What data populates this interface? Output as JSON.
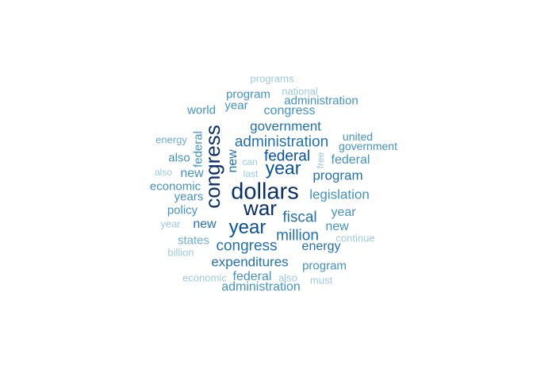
{
  "palette": {
    "darkest": "#08306b",
    "dark": "#08519c",
    "mid_dark": "#2171b5",
    "mid": "#4292c6",
    "mid_light": "#6baed6",
    "light": "#9ecae1"
  },
  "words": [
    {
      "text": "programs",
      "tier": "light",
      "rotated": false
    },
    {
      "text": "national",
      "tier": "light",
      "rotated": false
    },
    {
      "text": "program",
      "tier": "mid",
      "rotated": false
    },
    {
      "text": "administration",
      "tier": "mid",
      "rotated": false
    },
    {
      "text": "world",
      "tier": "mid",
      "rotated": false
    },
    {
      "text": "year",
      "tier": "mid",
      "rotated": false
    },
    {
      "text": "congress",
      "tier": "mid",
      "rotated": false
    },
    {
      "text": "government",
      "tier": "mid_dark",
      "rotated": false
    },
    {
      "text": "energy",
      "tier": "mid_light",
      "rotated": false
    },
    {
      "text": "federal",
      "tier": "mid",
      "rotated": true
    },
    {
      "text": "congress",
      "tier": "darkest",
      "rotated": true
    },
    {
      "text": "united",
      "tier": "mid",
      "rotated": false
    },
    {
      "text": "government",
      "tier": "mid",
      "rotated": false
    },
    {
      "text": "administration",
      "tier": "mid_dark",
      "rotated": false
    },
    {
      "text": "also",
      "tier": "mid",
      "rotated": false
    },
    {
      "text": "new",
      "tier": "mid_dark",
      "rotated": true
    },
    {
      "text": "federal",
      "tier": "dark",
      "rotated": false
    },
    {
      "text": "can",
      "tier": "light",
      "rotated": false
    },
    {
      "text": "free",
      "tier": "light",
      "rotated": true
    },
    {
      "text": "federal",
      "tier": "mid",
      "rotated": false
    },
    {
      "text": "year",
      "tier": "dark",
      "rotated": false
    },
    {
      "text": "also",
      "tier": "light",
      "rotated": false
    },
    {
      "text": "new",
      "tier": "mid",
      "rotated": false
    },
    {
      "text": "last",
      "tier": "light",
      "rotated": false
    },
    {
      "text": "program",
      "tier": "mid_dark",
      "rotated": false
    },
    {
      "text": "economic",
      "tier": "mid",
      "rotated": false
    },
    {
      "text": "dollars",
      "tier": "darkest",
      "rotated": false
    },
    {
      "text": "years",
      "tier": "mid",
      "rotated": false
    },
    {
      "text": "legislation",
      "tier": "mid",
      "rotated": false
    },
    {
      "text": "war",
      "tier": "darkest",
      "rotated": false
    },
    {
      "text": "policy",
      "tier": "mid",
      "rotated": false
    },
    {
      "text": "year",
      "tier": "mid",
      "rotated": false
    },
    {
      "text": "fiscal",
      "tier": "mid_dark",
      "rotated": false
    },
    {
      "text": "year",
      "tier": "light",
      "rotated": false
    },
    {
      "text": "new",
      "tier": "mid_dark",
      "rotated": false
    },
    {
      "text": "year",
      "tier": "dark",
      "rotated": false
    },
    {
      "text": "new",
      "tier": "mid",
      "rotated": false
    },
    {
      "text": "million",
      "tier": "mid_dark",
      "rotated": false
    },
    {
      "text": "continue",
      "tier": "light",
      "rotated": false
    },
    {
      "text": "states",
      "tier": "mid_light",
      "rotated": false
    },
    {
      "text": "congress",
      "tier": "mid_dark",
      "rotated": false
    },
    {
      "text": "energy",
      "tier": "mid_dark",
      "rotated": false
    },
    {
      "text": "billion",
      "tier": "light",
      "rotated": false
    },
    {
      "text": "expenditures",
      "tier": "mid_dark",
      "rotated": false
    },
    {
      "text": "program",
      "tier": "mid",
      "rotated": false
    },
    {
      "text": "economic",
      "tier": "light",
      "rotated": false
    },
    {
      "text": "federal",
      "tier": "mid",
      "rotated": false
    },
    {
      "text": "also",
      "tier": "light",
      "rotated": false
    },
    {
      "text": "must",
      "tier": "light",
      "rotated": false
    },
    {
      "text": "administration",
      "tier": "mid",
      "rotated": false
    }
  ]
}
